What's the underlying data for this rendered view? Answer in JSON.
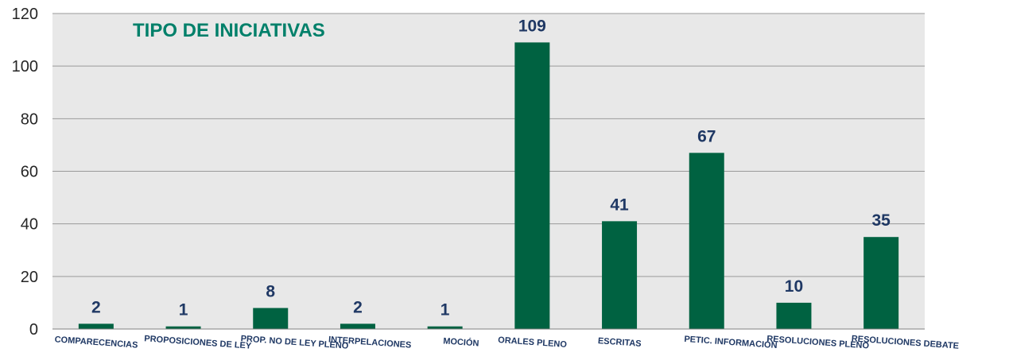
{
  "chart_data": {
    "type": "bar",
    "title": "TIPO DE INICIATIVAS",
    "categories": [
      "COMPARECENCIAS",
      "PROPOSICIONES DE LEY",
      "PROP. NO DE LEY PLENO",
      "INTERPELACIONES",
      "MOCIÓN",
      "ORALES PLENO",
      "ESCRITAS",
      "PETIC. INFORMACIÓN",
      "RESOLUCIONES PLENO",
      "RESOLUCIONES DEBATE"
    ],
    "values": [
      2,
      1,
      8,
      2,
      1,
      109,
      41,
      67,
      10,
      35
    ],
    "data_labels": [
      "2",
      "1",
      "8",
      "2",
      "1",
      "109",
      "41",
      "67",
      "10",
      "35"
    ],
    "ylim": [
      0,
      120
    ],
    "yticks": [
      0,
      20,
      40,
      60,
      80,
      100,
      120
    ],
    "grid": true,
    "colors": {
      "bar": "#006241",
      "plot_bg": "#e8e8e8",
      "title": "#00806a",
      "data_label": "#1f3864",
      "gridline": "#9a9a9a"
    }
  }
}
